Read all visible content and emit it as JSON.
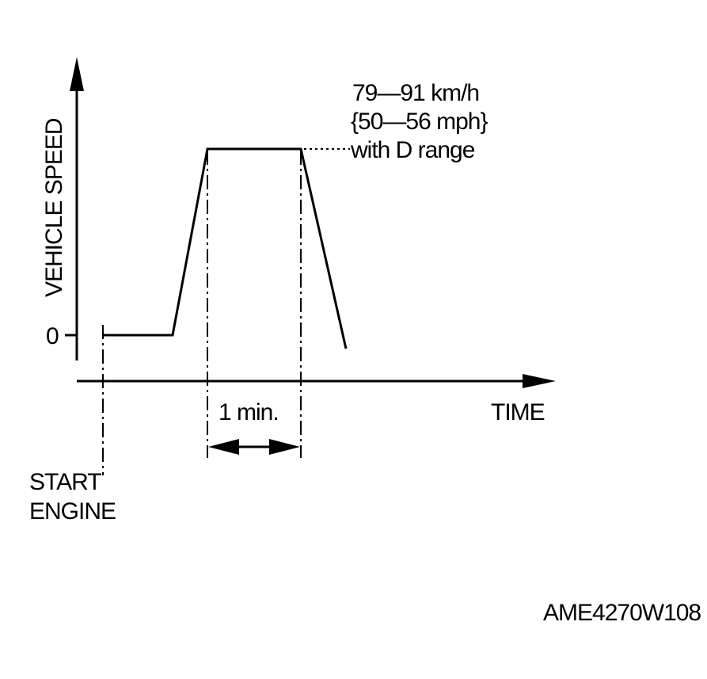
{
  "y_axis": {
    "label": "VEHICLE SPEED",
    "zero_label": "0"
  },
  "x_axis": {
    "label": "TIME"
  },
  "interval": {
    "label": "1 min."
  },
  "target_speed": {
    "lines": [
      "79—91 km/h",
      "{50—56 mph}",
      "with D range"
    ]
  },
  "start": {
    "lines": [
      "START",
      "ENGINE"
    ]
  },
  "figure_code": "AME4270W108"
}
